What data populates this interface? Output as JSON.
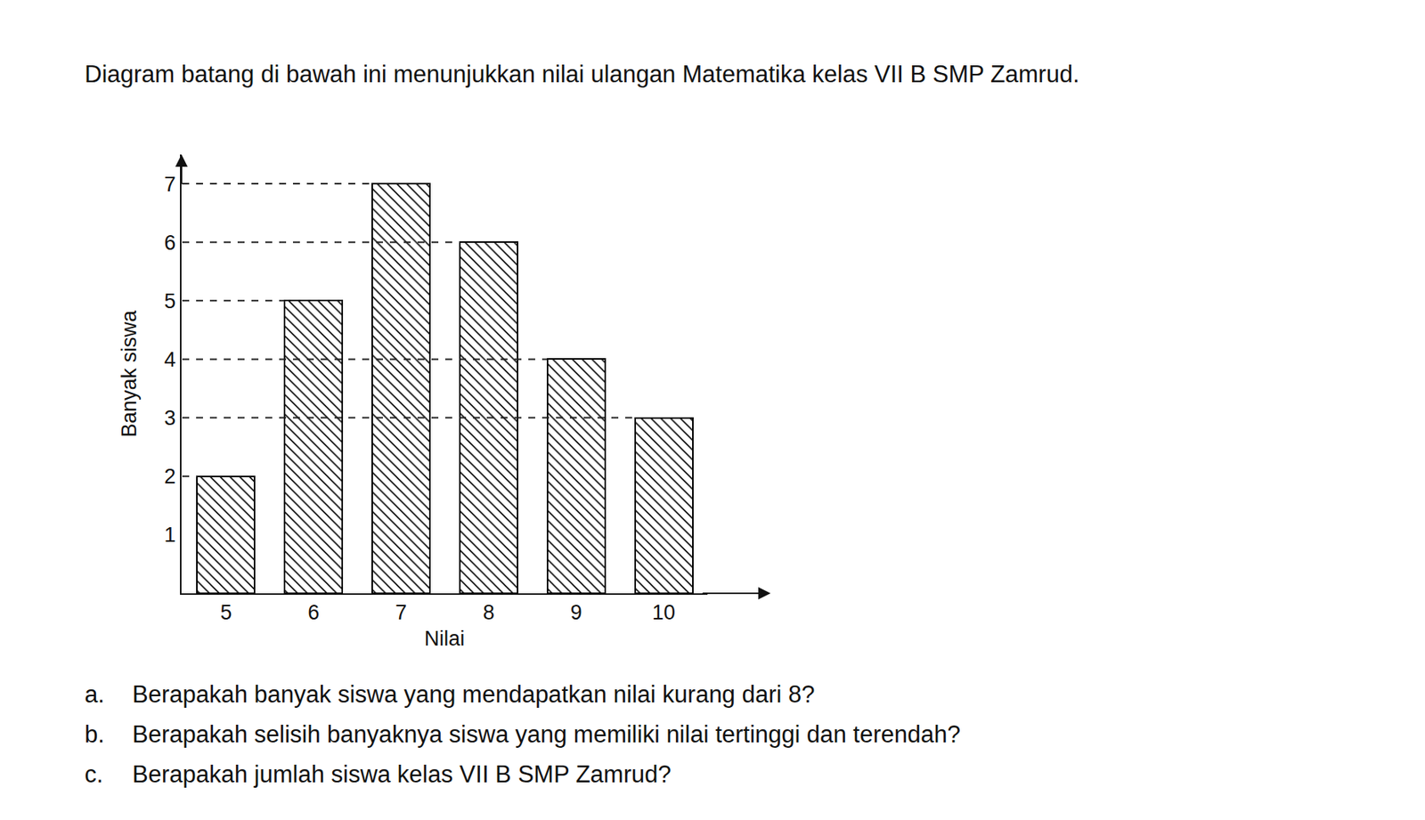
{
  "intro": "Diagram batang di bawah ini menunjukkan nilai ulangan Matematika kelas VII B SMP Zamrud.",
  "chart_data": {
    "type": "bar",
    "categories": [
      "5",
      "6",
      "7",
      "8",
      "9",
      "10"
    ],
    "values": [
      2,
      5,
      7,
      6,
      4,
      3
    ],
    "x_label": "Nilai",
    "y_label": "Banyak siswa",
    "ylim": [
      0,
      7.5
    ],
    "yticks": [
      1,
      2,
      3,
      4,
      5,
      6,
      7
    ],
    "color": "#000000"
  },
  "questions": [
    {
      "label": "a.",
      "text": "Berapakah banyak siswa yang mendapatkan nilai kurang dari 8?"
    },
    {
      "label": "b.",
      "text": "Berapakah selisih banyaknya siswa yang memiliki nilai tertinggi dan terendah?"
    },
    {
      "label": "c.",
      "text": "Berapakah jumlah siswa kelas VII B SMP Zamrud?"
    }
  ]
}
